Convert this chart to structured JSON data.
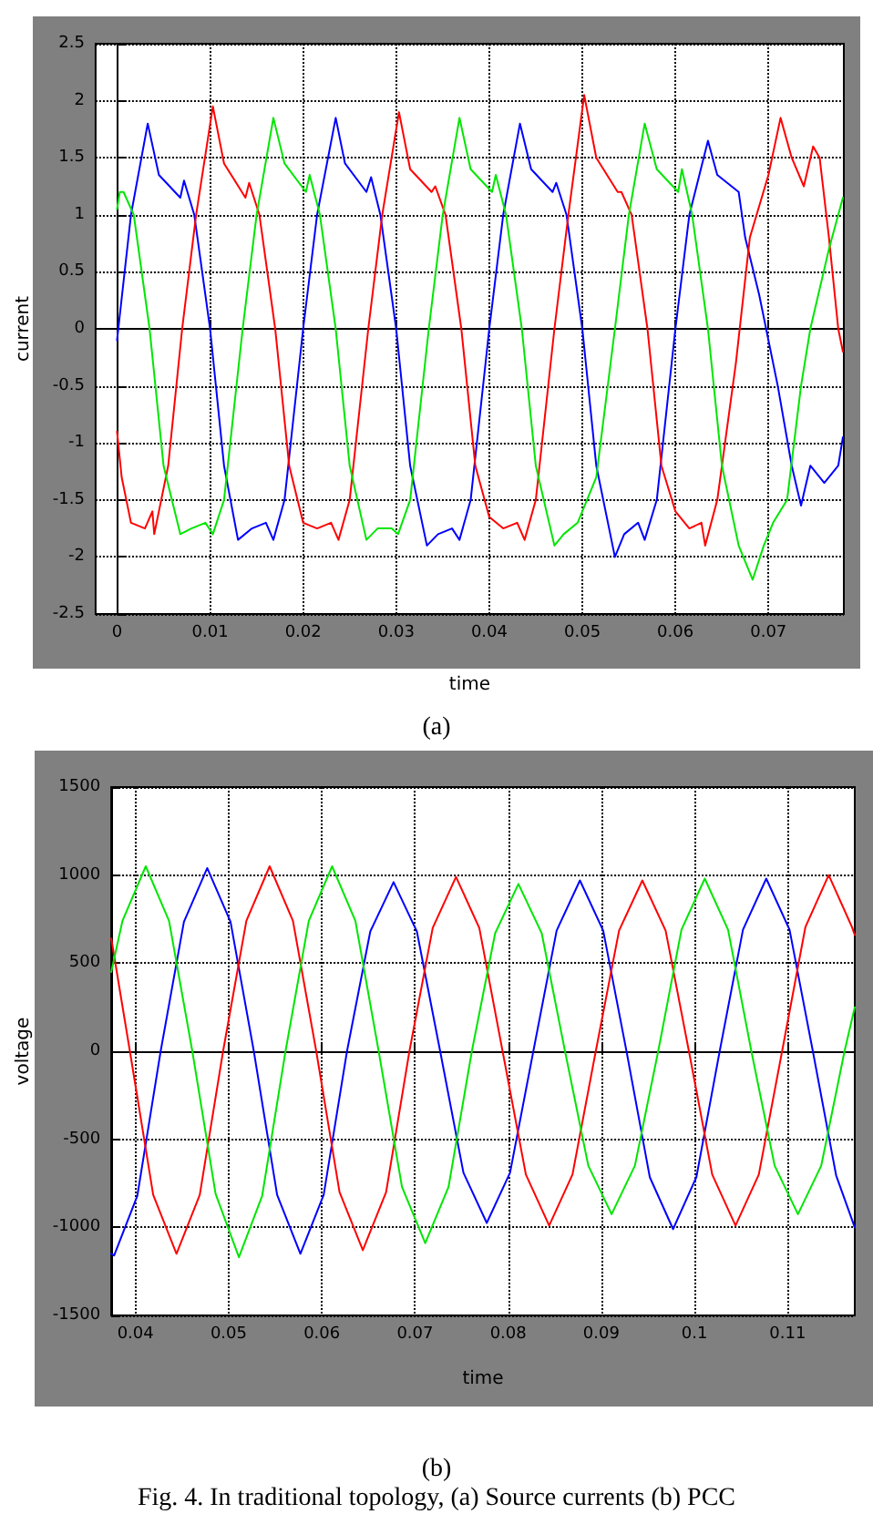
{
  "chart_data": [
    {
      "type": "line",
      "xlabel": "time",
      "ylabel": "current",
      "annotations": [
        "(a)"
      ],
      "grid": true,
      "marker": "none",
      "line_style": "solid",
      "xlim": [
        -0.0023,
        0.0781
      ],
      "ylim": [
        -2.5,
        2.5
      ],
      "xticks": [
        0,
        0.01,
        0.02,
        0.03,
        0.04,
        0.05,
        0.06,
        0.07
      ],
      "yticks": [
        -2.5,
        -2,
        -1.5,
        -1,
        -0.5,
        0,
        0.5,
        1,
        1.5,
        2,
        2.5
      ],
      "series": [
        {
          "color": "#0000ff",
          "x": [
            0,
            0.0015,
            0.0033,
            0.0045,
            0.0068,
            0.0072,
            0.0083,
            0.01,
            0.0115,
            0.013,
            0.0145,
            0.016,
            0.0168,
            0.018,
            0.02,
            0.0215,
            0.0235,
            0.0245,
            0.0268,
            0.0273,
            0.0283,
            0.03,
            0.0315,
            0.0333,
            0.0345,
            0.036,
            0.0368,
            0.038,
            0.04,
            0.0415,
            0.0433,
            0.0445,
            0.0468,
            0.0472,
            0.0483,
            0.05,
            0.0515,
            0.0535,
            0.0545,
            0.056,
            0.0567,
            0.058,
            0.06,
            0.0615,
            0.0635,
            0.0645,
            0.0668,
            0.0675,
            0.069,
            0.071,
            0.0725,
            0.0735,
            0.0745,
            0.076,
            0.0775,
            0.078
          ],
          "values": [
            -0.1,
            1.0,
            1.8,
            1.35,
            1.15,
            1.3,
            1.0,
            0,
            -1.2,
            -1.85,
            -1.75,
            -1.7,
            -1.85,
            -1.5,
            0,
            1.0,
            1.85,
            1.45,
            1.2,
            1.33,
            1.0,
            0,
            -1.2,
            -1.9,
            -1.8,
            -1.75,
            -1.85,
            -1.5,
            0,
            1.0,
            1.8,
            1.4,
            1.2,
            1.28,
            1.0,
            0,
            -1.2,
            -2.0,
            -1.8,
            -1.7,
            -1.85,
            -1.5,
            0,
            1.0,
            1.65,
            1.35,
            1.2,
            0.8,
            0.3,
            -0.5,
            -1.2,
            -1.55,
            -1.2,
            -1.35,
            -1.2,
            -0.95
          ]
        },
        {
          "color": "#ff0000",
          "x": [
            0,
            0.0005,
            0.0015,
            0.003,
            0.0038,
            0.004,
            0.0055,
            0.007,
            0.0085,
            0.0103,
            0.0115,
            0.0138,
            0.0142,
            0.0153,
            0.017,
            0.0185,
            0.02,
            0.0215,
            0.023,
            0.0238,
            0.025,
            0.027,
            0.0285,
            0.0303,
            0.0315,
            0.0338,
            0.0342,
            0.0353,
            0.037,
            0.0385,
            0.04,
            0.0415,
            0.043,
            0.0438,
            0.045,
            0.047,
            0.0485,
            0.0502,
            0.0515,
            0.0538,
            0.0542,
            0.0553,
            0.057,
            0.0585,
            0.06,
            0.0615,
            0.0628,
            0.0632,
            0.0645,
            0.0665,
            0.068,
            0.07,
            0.0713,
            0.0725,
            0.0738,
            0.0748,
            0.0755,
            0.0765,
            0.0775,
            0.078
          ],
          "values": [
            -0.9,
            -1.3,
            -1.7,
            -1.75,
            -1.6,
            -1.8,
            -1.2,
            0,
            1.0,
            1.95,
            1.45,
            1.15,
            1.28,
            1.0,
            0,
            -1.2,
            -1.7,
            -1.75,
            -1.7,
            -1.85,
            -1.5,
            0,
            1.0,
            1.9,
            1.4,
            1.2,
            1.25,
            1.0,
            0,
            -1.2,
            -1.65,
            -1.75,
            -1.7,
            -1.85,
            -1.5,
            0,
            1.0,
            2.05,
            1.5,
            1.2,
            1.2,
            1.0,
            0,
            -1.2,
            -1.6,
            -1.75,
            -1.7,
            -1.9,
            -1.5,
            -0.3,
            0.8,
            1.35,
            1.85,
            1.5,
            1.25,
            1.6,
            1.5,
            0.8,
            0,
            -0.2
          ]
        },
        {
          "color": "#00e600",
          "x": [
            0,
            0.0003,
            0.0007,
            0.0018,
            0.0035,
            0.005,
            0.0068,
            0.008,
            0.0095,
            0.0103,
            0.0115,
            0.0135,
            0.015,
            0.0168,
            0.018,
            0.0203,
            0.0207,
            0.0218,
            0.0235,
            0.025,
            0.0268,
            0.028,
            0.0295,
            0.0302,
            0.0315,
            0.0335,
            0.035,
            0.0368,
            0.038,
            0.0403,
            0.0407,
            0.0418,
            0.0435,
            0.045,
            0.047,
            0.048,
            0.0495,
            0.05,
            0.0515,
            0.0535,
            0.055,
            0.0567,
            0.058,
            0.0603,
            0.0607,
            0.0618,
            0.0635,
            0.065,
            0.0668,
            0.0683,
            0.0695,
            0.0705,
            0.072,
            0.0735,
            0.0745,
            0.0765,
            0.078
          ],
          "values": [
            1.05,
            1.2,
            1.2,
            1.0,
            0,
            -1.2,
            -1.8,
            -1.75,
            -1.7,
            -1.8,
            -1.5,
            0,
            1.0,
            1.85,
            1.45,
            1.2,
            1.35,
            1.0,
            0,
            -1.2,
            -1.85,
            -1.75,
            -1.75,
            -1.8,
            -1.5,
            0,
            1.0,
            1.85,
            1.4,
            1.2,
            1.35,
            1.0,
            0,
            -1.2,
            -1.9,
            -1.8,
            -1.7,
            -1.6,
            -1.3,
            0,
            1.0,
            1.8,
            1.4,
            1.2,
            1.4,
            1.0,
            0,
            -1.2,
            -1.9,
            -2.2,
            -1.9,
            -1.7,
            -1.5,
            -0.5,
            0,
            0.7,
            1.15
          ]
        }
      ]
    },
    {
      "type": "line",
      "xlabel": "time",
      "ylabel": "voltage",
      "annotations": [
        "(b)",
        "Fig. 4. In traditional topology, (a) Source currents (b) PCC"
      ],
      "grid": true,
      "marker": "none",
      "line_style": "solid",
      "xlim": [
        0.0374,
        0.1172
      ],
      "ylim": [
        -1500,
        1500
      ],
      "xticks": [
        0.04,
        0.05,
        0.06,
        0.07,
        0.08,
        0.09,
        0.1,
        0.11
      ],
      "yticks": [
        -1500,
        -1000,
        -500,
        0,
        500,
        1000,
        1500
      ],
      "series": [
        {
          "color": "#0000ff",
          "x": [
            0.0374,
            0.0377,
            0.0402,
            0.0427,
            0.0452,
            0.0477,
            0.0502,
            0.0527,
            0.0552,
            0.0577,
            0.0602,
            0.0627,
            0.0652,
            0.0677,
            0.0702,
            0.0727,
            0.0752,
            0.0777,
            0.0802,
            0.0827,
            0.0852,
            0.0877,
            0.0902,
            0.0927,
            0.0952,
            0.0977,
            0.1002,
            0.1027,
            0.1052,
            0.1077,
            0.1102,
            0.1127,
            0.1152,
            0.1172
          ],
          "values": [
            -1150,
            -1160,
            -820,
            0,
            735,
            1040,
            735,
            0,
            -815,
            -1150,
            -815,
            0,
            680,
            960,
            680,
            0,
            -690,
            -975,
            -690,
            0,
            685,
            970,
            685,
            0,
            -715,
            -1010,
            -715,
            0,
            690,
            980,
            690,
            0,
            -705,
            -1000
          ]
        },
        {
          "color": "#ff0000",
          "x": [
            0.0374,
            0.0394,
            0.0419,
            0.0444,
            0.0469,
            0.0494,
            0.0519,
            0.0544,
            0.0569,
            0.0594,
            0.0619,
            0.0644,
            0.0669,
            0.0694,
            0.0719,
            0.0744,
            0.0769,
            0.0794,
            0.0819,
            0.0844,
            0.0869,
            0.0894,
            0.0919,
            0.0944,
            0.0969,
            0.0994,
            0.1019,
            0.1044,
            0.1069,
            0.1094,
            0.1119,
            0.1144,
            0.1169,
            0.1172
          ],
          "values": [
            640,
            0,
            -815,
            -1150,
            -815,
            0,
            740,
            1050,
            740,
            0,
            -800,
            -1130,
            -800,
            0,
            700,
            990,
            700,
            0,
            -700,
            -990,
            -700,
            0,
            685,
            970,
            685,
            0,
            -700,
            -990,
            -700,
            0,
            705,
            1000,
            705,
            660
          ]
        },
        {
          "color": "#00e600",
          "x": [
            0.0374,
            0.0386,
            0.0411,
            0.0436,
            0.0461,
            0.0486,
            0.0511,
            0.0536,
            0.0561,
            0.0586,
            0.0611,
            0.0636,
            0.0661,
            0.0686,
            0.0711,
            0.0736,
            0.0761,
            0.0786,
            0.0811,
            0.0836,
            0.0861,
            0.0886,
            0.0911,
            0.0936,
            0.0961,
            0.0986,
            0.1011,
            0.1036,
            0.1061,
            0.1086,
            0.1111,
            0.1136,
            0.1161,
            0.1172
          ],
          "values": [
            450,
            740,
            1050,
            740,
            0,
            -810,
            -1170,
            -820,
            0,
            740,
            1050,
            740,
            0,
            -770,
            -1090,
            -770,
            0,
            670,
            950,
            670,
            0,
            -650,
            -925,
            -650,
            0,
            690,
            980,
            690,
            0,
            -650,
            -925,
            -650,
            0,
            250
          ]
        }
      ]
    }
  ]
}
